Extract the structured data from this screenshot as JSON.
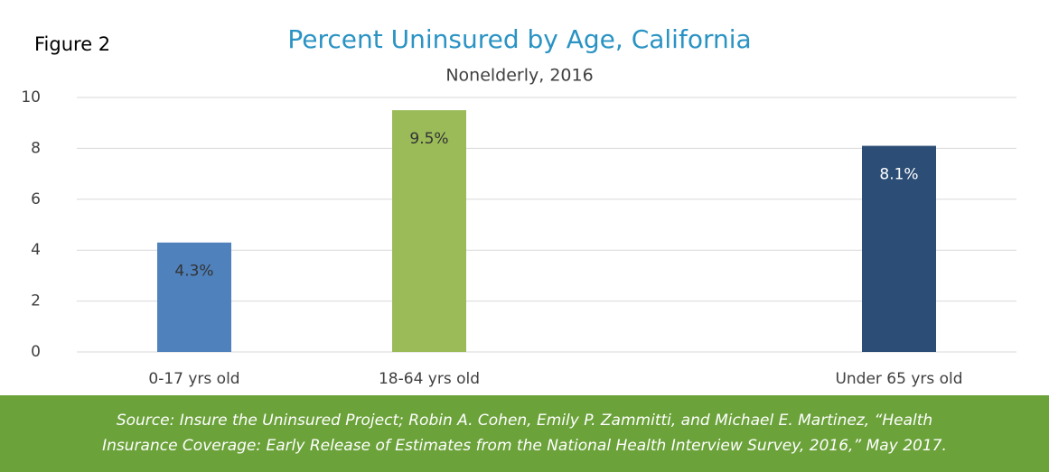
{
  "chart_data": {
    "type": "bar",
    "figure_label": "Figure 2",
    "title": "Percent Uninsured by Age, California",
    "subtitle": "Nonelderly, 2016",
    "categories": [
      "0-17 yrs old",
      "18-64 yrs old",
      null,
      "Under 65 yrs old"
    ],
    "values": [
      4.3,
      9.5,
      null,
      8.1
    ],
    "value_labels": [
      "4.3%",
      "9.5%",
      null,
      "8.1%"
    ],
    "colors": [
      "#4f81bd",
      "#9bbb59",
      null,
      "#2c4d75"
    ],
    "value_label_colors": [
      "#333333",
      "#333333",
      null,
      "#ffffff"
    ],
    "ylim": [
      0,
      10
    ],
    "yticks": [
      0,
      2,
      4,
      6,
      8,
      10
    ],
    "grid": true,
    "source_lines": [
      "Source: Insure the Uninsured Project; Robin A. Cohen, Emily P. Zammitti, and Michael E. Martinez, “Health",
      "Insurance Coverage: Early Release of Estimates from the National Health Interview Survey, 2016,” May 2017."
    ]
  }
}
